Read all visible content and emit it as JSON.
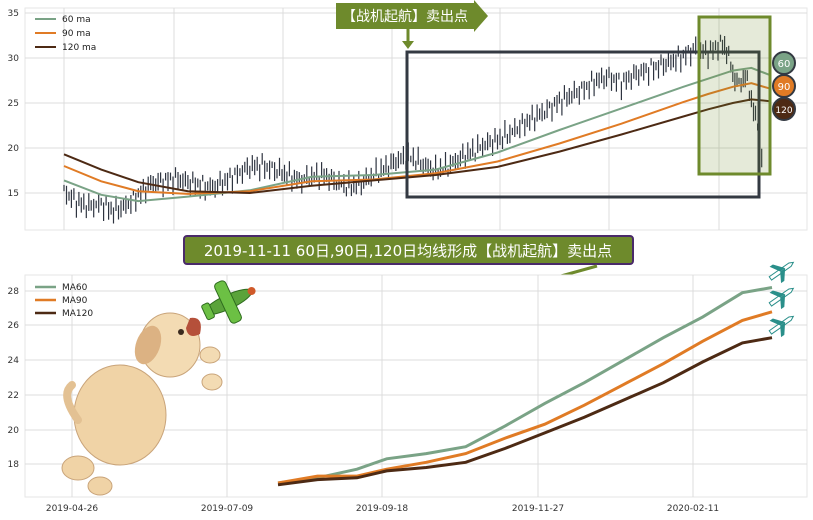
{
  "colors": {
    "ma60": "#7aa386",
    "ma90": "#e07b25",
    "ma120": "#4d2a14",
    "candle": "#2e3440",
    "banner_top": "#5f8a2c",
    "banner_mid": "#6e8a2c",
    "zoom_box": "#333942",
    "highlight_box": "#6e8a2c"
  },
  "top_banner": {
    "text": "【战机起航】卖出点"
  },
  "mid_banner": {
    "text": "2019-11-11 60日,90日,120日均线形成【战机起航】卖出点"
  },
  "badges": [
    {
      "label": "60",
      "color": "#7aa386"
    },
    {
      "label": "90",
      "color": "#e07b25"
    },
    {
      "label": "120",
      "color": "#4d2a14"
    }
  ],
  "chart_data": [
    {
      "type": "line",
      "ylim": [
        11,
        35.5
      ],
      "yticks": [
        15,
        20,
        25,
        30,
        35
      ],
      "legend": "top-left",
      "grid": true,
      "series": [
        {
          "name": "60 ma",
          "x": [
            0,
            30,
            60,
            100,
            150,
            200,
            250,
            300,
            350,
            400,
            450,
            500,
            520,
            540,
            555,
            570
          ],
          "values": [
            16.4,
            14.8,
            14.1,
            14.6,
            15.3,
            16.8,
            17.0,
            17.6,
            19.5,
            22.0,
            24.4,
            26.8,
            27.7,
            28.6,
            28.9,
            28.1
          ]
        },
        {
          "name": "90 ma",
          "x": [
            0,
            30,
            60,
            100,
            150,
            200,
            250,
            300,
            350,
            400,
            450,
            500,
            520,
            540,
            555,
            570
          ],
          "values": [
            18.0,
            16.3,
            15.2,
            14.9,
            15.2,
            16.3,
            16.5,
            17.2,
            18.5,
            20.5,
            22.7,
            25.1,
            26.0,
            26.8,
            27.2,
            26.6
          ]
        },
        {
          "name": "120 ma",
          "x": [
            0,
            30,
            60,
            100,
            150,
            200,
            250,
            300,
            350,
            400,
            450,
            500,
            520,
            540,
            555,
            570
          ],
          "values": [
            19.3,
            17.6,
            16.2,
            15.2,
            15.0,
            15.8,
            16.4,
            17.0,
            17.9,
            19.6,
            21.5,
            23.5,
            24.3,
            25.0,
            25.4,
            25.2
          ]
        }
      ],
      "candles_close": [
        [
          0,
          15.2
        ],
        [
          10,
          14.0
        ],
        [
          20,
          13.5
        ],
        [
          30,
          13.8
        ],
        [
          40,
          13.0
        ],
        [
          50,
          13.6
        ],
        [
          60,
          14.8
        ],
        [
          70,
          16.0
        ],
        [
          80,
          16.3
        ],
        [
          90,
          16.6
        ],
        [
          100,
          16.2
        ],
        [
          110,
          15.9
        ],
        [
          120,
          15.6
        ],
        [
          130,
          16.3
        ],
        [
          140,
          17.1
        ],
        [
          150,
          17.9
        ],
        [
          160,
          18.0
        ],
        [
          170,
          17.6
        ],
        [
          180,
          17.0
        ],
        [
          190,
          16.4
        ],
        [
          200,
          16.8
        ],
        [
          210,
          17.0
        ],
        [
          220,
          16.2
        ],
        [
          230,
          15.7
        ],
        [
          240,
          16.1
        ],
        [
          250,
          17.0
        ],
        [
          260,
          17.8
        ],
        [
          270,
          18.7
        ],
        [
          280,
          19.0
        ],
        [
          290,
          18.1
        ],
        [
          300,
          17.5
        ],
        [
          310,
          17.9
        ],
        [
          320,
          18.9
        ],
        [
          330,
          19.6
        ],
        [
          340,
          20.4
        ],
        [
          350,
          20.9
        ],
        [
          360,
          21.6
        ],
        [
          370,
          22.6
        ],
        [
          380,
          23.4
        ],
        [
          390,
          24.2
        ],
        [
          400,
          25.2
        ],
        [
          410,
          25.9
        ],
        [
          420,
          26.6
        ],
        [
          430,
          27.5
        ],
        [
          440,
          27.9
        ],
        [
          450,
          27.2
        ],
        [
          460,
          28.1
        ],
        [
          470,
          28.6
        ],
        [
          480,
          29.1
        ],
        [
          490,
          29.6
        ],
        [
          500,
          30.2
        ],
        [
          510,
          31.1
        ],
        [
          520,
          30.5
        ],
        [
          530,
          31.6
        ],
        [
          535,
          31.0
        ],
        [
          540,
          28.2
        ],
        [
          545,
          27.0
        ],
        [
          550,
          28.1
        ],
        [
          555,
          25.4
        ],
        [
          560,
          22.3
        ],
        [
          565,
          17.0
        ]
      ]
    },
    {
      "type": "line",
      "categories": [
        "2019-04-26",
        "2019-07-09",
        "2019-09-18",
        "2019-11-27",
        "2020-02-11"
      ],
      "ylim": [
        16.2,
        29.2
      ],
      "yticks": [
        18,
        20,
        22,
        24,
        26,
        28
      ],
      "legend": "top-left",
      "grid": true,
      "series": [
        {
          "name": "MA60",
          "x": [
            0.0,
            0.08,
            0.16,
            0.22,
            0.3,
            0.38,
            0.46,
            0.54,
            0.62,
            0.7,
            0.78,
            0.86,
            0.94,
            1.0
          ],
          "values": [
            16.9,
            17.2,
            17.7,
            18.3,
            18.6,
            19.0,
            20.2,
            21.5,
            22.7,
            24.0,
            25.3,
            26.5,
            27.9,
            28.2
          ]
        },
        {
          "name": "MA90",
          "x": [
            0.0,
            0.08,
            0.16,
            0.22,
            0.3,
            0.38,
            0.46,
            0.54,
            0.62,
            0.7,
            0.78,
            0.86,
            0.94,
            1.0
          ],
          "values": [
            16.9,
            17.3,
            17.3,
            17.7,
            18.1,
            18.6,
            19.5,
            20.3,
            21.4,
            22.6,
            23.8,
            25.1,
            26.3,
            26.8
          ]
        },
        {
          "name": "MA120",
          "x": [
            0.0,
            0.08,
            0.16,
            0.22,
            0.3,
            0.38,
            0.46,
            0.54,
            0.62,
            0.7,
            0.78,
            0.86,
            0.94,
            1.0
          ],
          "values": [
            16.8,
            17.1,
            17.2,
            17.6,
            17.8,
            18.1,
            18.9,
            19.8,
            20.7,
            21.7,
            22.7,
            23.9,
            25.0,
            25.3
          ]
        }
      ]
    }
  ]
}
